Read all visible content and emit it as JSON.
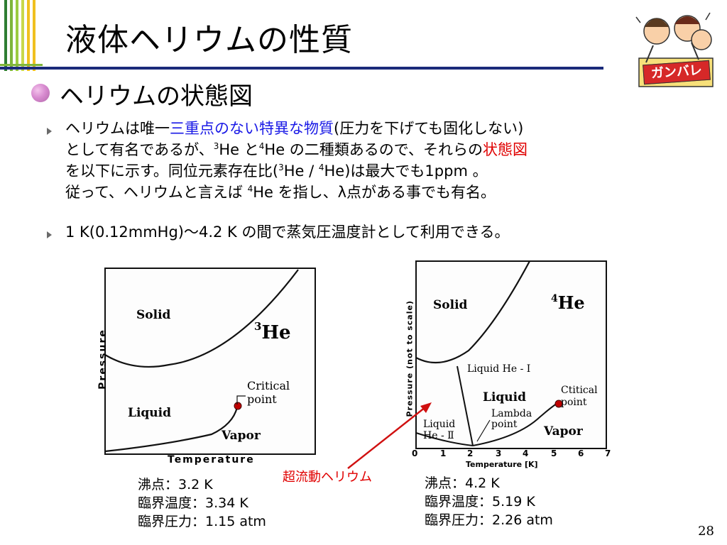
{
  "title": "液体ヘリウムの性質",
  "subtitle": "ヘリウムの状態図",
  "para1": {
    "line1_a": "ヘリウムは唯一",
    "line1_highlight": "三重点のない特異な物質",
    "line1_b": "(圧力を下げても固化しない)",
    "line2_a": "として有名であるが、",
    "line2_sup1": "3",
    "line2_b": "He と",
    "line2_sup2": "4",
    "line2_c": "He の二種類あるので、それらの",
    "line2_highlight": "状態図",
    "line3_a": "を以下に示す。同位元素存在比(",
    "line3_sup1": "3",
    "line3_b": "He / ",
    "line3_sup2": "4",
    "line3_c": "He)は最大でも1ppm 。",
    "line4_a": "従って、ヘリウムと言えば ",
    "line4_sup": "4",
    "line4_b": "He を指し、λ点がある事でも有名。"
  },
  "para2": "1 K(0.12mmHg)～4.2 K の間で蒸気圧温度計として利用できる。",
  "he3_diagram": {
    "isotope_sup": "3",
    "isotope": "He",
    "solid": "Solid",
    "liquid": "Liquid",
    "vapor": "Vapor",
    "critical_line1": "Critical",
    "critical_line2": "point",
    "xlabel": "Temperature",
    "ylabel": "Pressure"
  },
  "he4_diagram": {
    "isotope_sup": "4",
    "isotope": "He",
    "solid": "Solid",
    "liquid_I": "Liquid He - Ⅰ",
    "liquid": "Liquid",
    "liquid_II_line1": "Liquid",
    "liquid_II_line2": "He - Ⅱ",
    "lambda_line1": "Lambda",
    "lambda_line2": "point",
    "critical_line1": "Ctitical",
    "critical_line2": "point",
    "vapor": "Vapor",
    "xlabel": "Temperature [K]",
    "ylabel": "Pressure (not to scale)",
    "xticks": [
      "0",
      "1",
      "2",
      "3",
      "4",
      "5",
      "6",
      "7"
    ]
  },
  "superfluid_label": "超流動ヘリウム",
  "he3_props": [
    "沸点：3.2 K",
    "臨界温度：3.34 K",
    "臨界圧力：1.15 atm"
  ],
  "he4_props": [
    "沸点：4.2 K",
    "臨界温度：5.19 K",
    "臨界圧力：2.26 atm"
  ],
  "badge_text": "ガンバレ",
  "page_number": "28",
  "colors": {
    "accent_blue": "#1a1ae6",
    "accent_red": "#e00000",
    "bar_green": "#7fb53a",
    "bar_yellow": "#f0c020",
    "bar_navy": "#1a2a7a"
  }
}
